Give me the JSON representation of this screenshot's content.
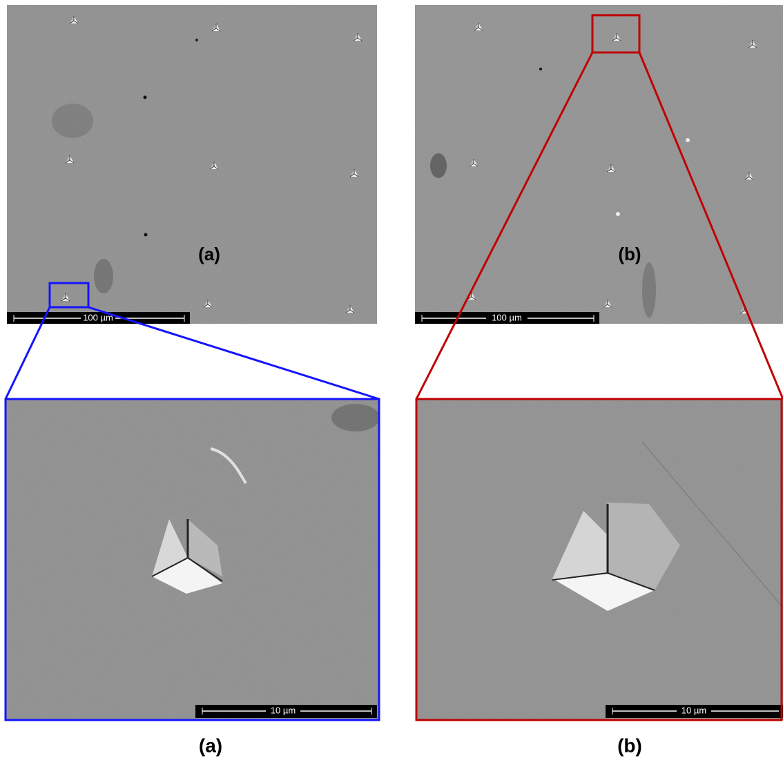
{
  "panels": [
    {
      "label": "(a)",
      "scale_bar": "100 µm"
    },
    {
      "label": "(b)",
      "scale_bar": "100 µm"
    }
  ],
  "zoom_panels": [
    {
      "scale_bar": "10 µm",
      "caption": "(a)"
    },
    {
      "scale_bar": "10 µm",
      "caption": "(b)"
    }
  ]
}
